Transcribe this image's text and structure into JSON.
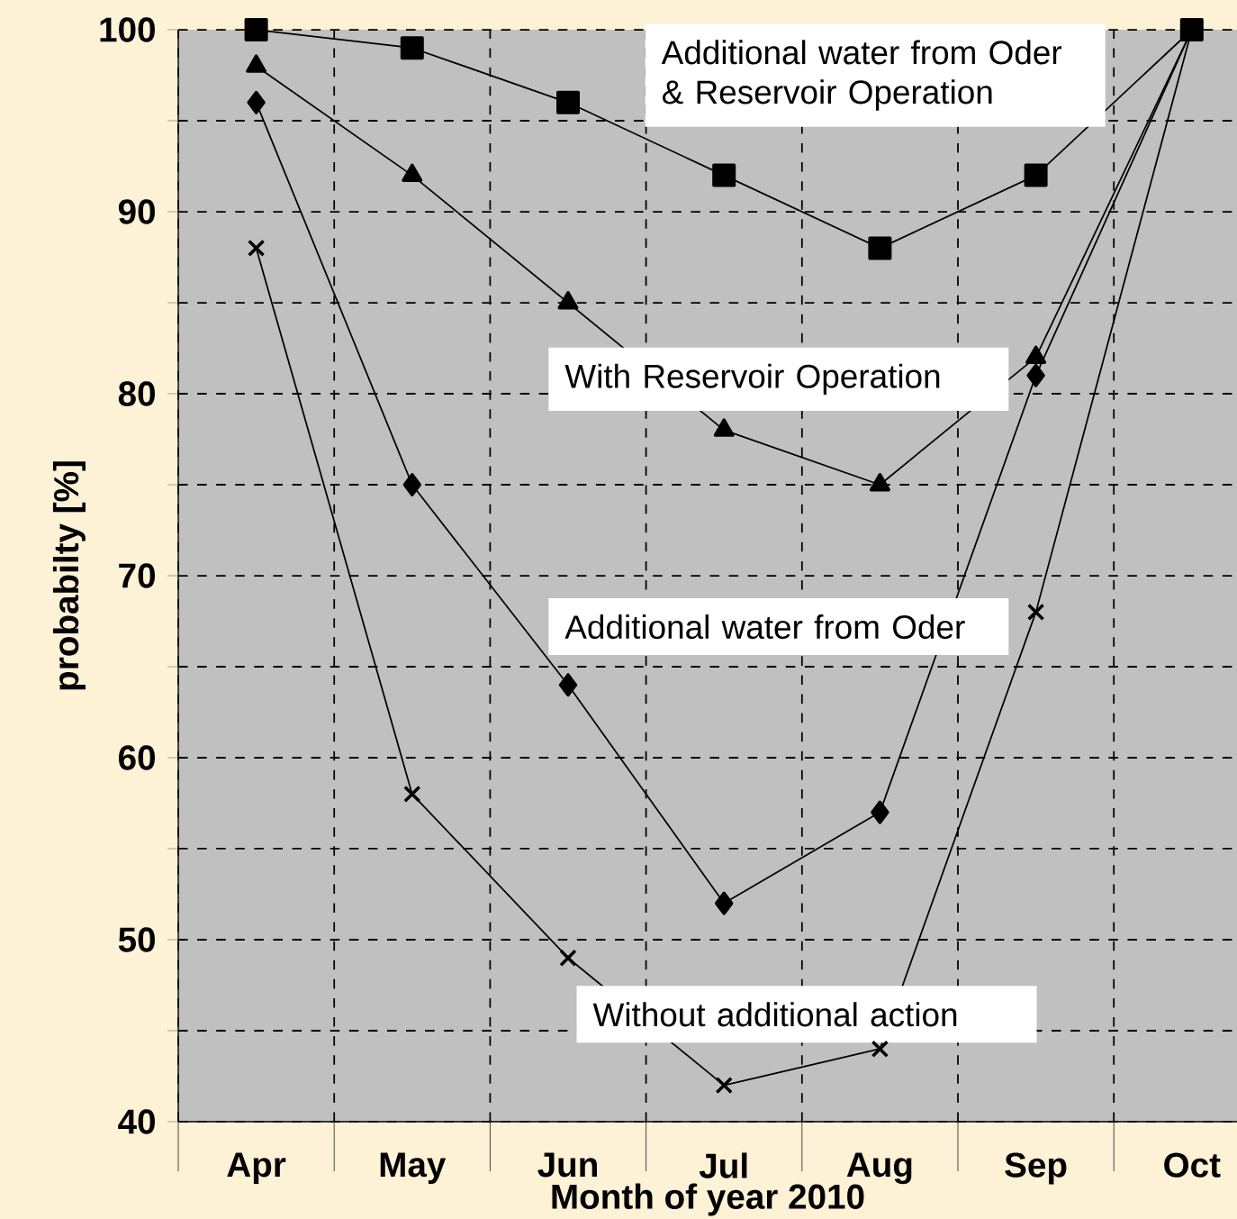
{
  "chart_data": {
    "type": "line",
    "xlabel": "Month of year 2010",
    "ylabel": "probabilty [%]",
    "categories": [
      "Apr",
      "May",
      "Jun",
      "Jul",
      "Aug",
      "Sep",
      "Oct"
    ],
    "series": [
      {
        "name": "Additional water from Oder & Reservoir Operation",
        "color": "#000000",
        "marker": "square",
        "values": [
          100,
          99,
          96,
          92,
          88,
          92,
          100
        ]
      },
      {
        "name": "With Reservoir Operation",
        "color": "#000000",
        "marker": "triangle",
        "values": [
          98,
          92,
          85,
          78,
          75,
          82,
          100
        ]
      },
      {
        "name": "Additional water from Oder",
        "color": "#000000",
        "marker": "diamond",
        "values": [
          96,
          75,
          64,
          52,
          57,
          81,
          100
        ]
      },
      {
        "name": "Without additional action",
        "color": "#000000",
        "marker": "cross",
        "values": [
          88,
          58,
          49,
          42,
          44,
          68,
          100
        ]
      }
    ],
    "ylim": [
      40,
      100
    ],
    "yticks": [
      40,
      {
        "value": 45,
        "label": null
      },
      50,
      {
        "value": 55,
        "label": null
      },
      60,
      {
        "value": 65,
        "label": null
      },
      70,
      {
        "value": 75,
        "label": null
      },
      80,
      {
        "value": 85,
        "label": null
      },
      90,
      {
        "value": 95,
        "label": null
      },
      100
    ],
    "grid": true,
    "line_style": "solid"
  }
}
